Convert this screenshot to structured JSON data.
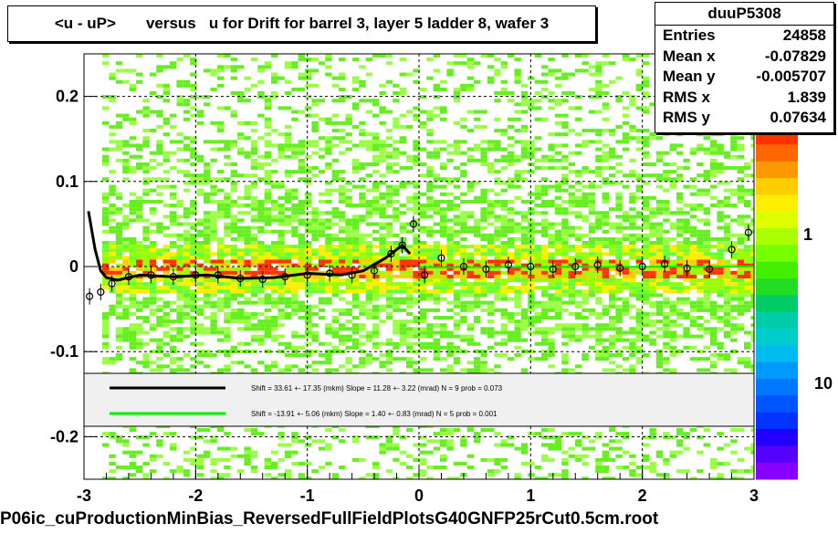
{
  "title": "<u - uP>       versus   u for Drift for barrel 3, layer 5 ladder 8, wafer 3",
  "stats": {
    "name": "duuP5308",
    "rows": [
      {
        "label": "Entries",
        "value": "24858"
      },
      {
        "label": "Mean x",
        "value": "-0.07829"
      },
      {
        "label": "Mean y",
        "value": "-0.005707"
      },
      {
        "label": "RMS x",
        "value": "1.839"
      },
      {
        "label": "RMS y",
        "value": "0.07634"
      }
    ]
  },
  "footer": "P06ic_cuProductionMinBias_ReversedFullFieldPlotsG40GNFP25rCut0.5cm.root",
  "legend": {
    "lines": [
      {
        "color": "#000000",
        "text": "Shift =    33.61 +- 17.35 (mkm) Slope =    11.28 +- 3.22 (mrad)  N = 9 prob = 0.073"
      },
      {
        "color": "#00ee00",
        "text": "Shift =   -13.91 +- 5.06 (mkm) Slope =     1.40 +- 0.83 (mrad)  N = 5 prob = 0.001"
      }
    ]
  },
  "colorbar": {
    "labels": [
      "10",
      "1",
      "10"
    ]
  },
  "chart_data": {
    "type": "heatmap",
    "title": "<u - uP>       versus   u for Drift for barrel 3, layer 5 ladder 8, wafer 3",
    "xlim": [
      -3,
      3
    ],
    "ylim": [
      -0.25,
      0.25
    ],
    "x_ticks": [
      "-3",
      "-2",
      "-1",
      "0",
      "1",
      "2",
      "3"
    ],
    "y_ticks": [
      "-0.2",
      "-0.1",
      "0",
      "0.1",
      "0.2"
    ],
    "grid": true,
    "profile_points": [
      {
        "x": -2.95,
        "y": -0.035
      },
      {
        "x": -2.85,
        "y": -0.03
      },
      {
        "x": -2.75,
        "y": -0.02
      },
      {
        "x": -2.6,
        "y": -0.012
      },
      {
        "x": -2.4,
        "y": -0.01
      },
      {
        "x": -2.2,
        "y": -0.012
      },
      {
        "x": -2.0,
        "y": -0.01
      },
      {
        "x": -1.8,
        "y": -0.01
      },
      {
        "x": -1.6,
        "y": -0.014
      },
      {
        "x": -1.4,
        "y": -0.015
      },
      {
        "x": -1.2,
        "y": -0.012
      },
      {
        "x": -1.0,
        "y": -0.01
      },
      {
        "x": -0.8,
        "y": -0.008
      },
      {
        "x": -0.6,
        "y": -0.01
      },
      {
        "x": -0.4,
        "y": -0.005
      },
      {
        "x": -0.25,
        "y": 0.015
      },
      {
        "x": -0.15,
        "y": 0.025
      },
      {
        "x": -0.05,
        "y": 0.05
      },
      {
        "x": 0.05,
        "y": -0.01
      },
      {
        "x": 0.2,
        "y": 0.01
      },
      {
        "x": 0.4,
        "y": 0.0
      },
      {
        "x": 0.6,
        "y": -0.003
      },
      {
        "x": 0.8,
        "y": 0.002
      },
      {
        "x": 1.0,
        "y": 0.0
      },
      {
        "x": 1.2,
        "y": -0.003
      },
      {
        "x": 1.4,
        "y": 0.0
      },
      {
        "x": 1.6,
        "y": 0.002
      },
      {
        "x": 1.8,
        "y": -0.002
      },
      {
        "x": 2.0,
        "y": 0.0
      },
      {
        "x": 2.2,
        "y": 0.003
      },
      {
        "x": 2.4,
        "y": -0.002
      },
      {
        "x": 2.6,
        "y": -0.003
      },
      {
        "x": 2.8,
        "y": 0.02
      },
      {
        "x": 2.95,
        "y": 0.04
      }
    ],
    "fit_black": [
      {
        "x": -2.96,
        "y": 0.065
      },
      {
        "x": -2.9,
        "y": 0.02
      },
      {
        "x": -2.85,
        "y": -0.005
      },
      {
        "x": -2.8,
        "y": -0.013
      },
      {
        "x": -2.7,
        "y": -0.016
      },
      {
        "x": -2.5,
        "y": -0.01
      },
      {
        "x": -2.2,
        "y": -0.012
      },
      {
        "x": -1.9,
        "y": -0.01
      },
      {
        "x": -1.6,
        "y": -0.014
      },
      {
        "x": -1.3,
        "y": -0.013
      },
      {
        "x": -1.0,
        "y": -0.008
      },
      {
        "x": -0.7,
        "y": -0.01
      },
      {
        "x": -0.5,
        "y": -0.005
      },
      {
        "x": -0.3,
        "y": 0.01
      },
      {
        "x": -0.15,
        "y": 0.025
      },
      {
        "x": -0.08,
        "y": 0.015
      }
    ],
    "fit_green": [
      {
        "x": 0.0,
        "y": -0.001
      },
      {
        "x": 3.0,
        "y": 0.0
      }
    ]
  }
}
